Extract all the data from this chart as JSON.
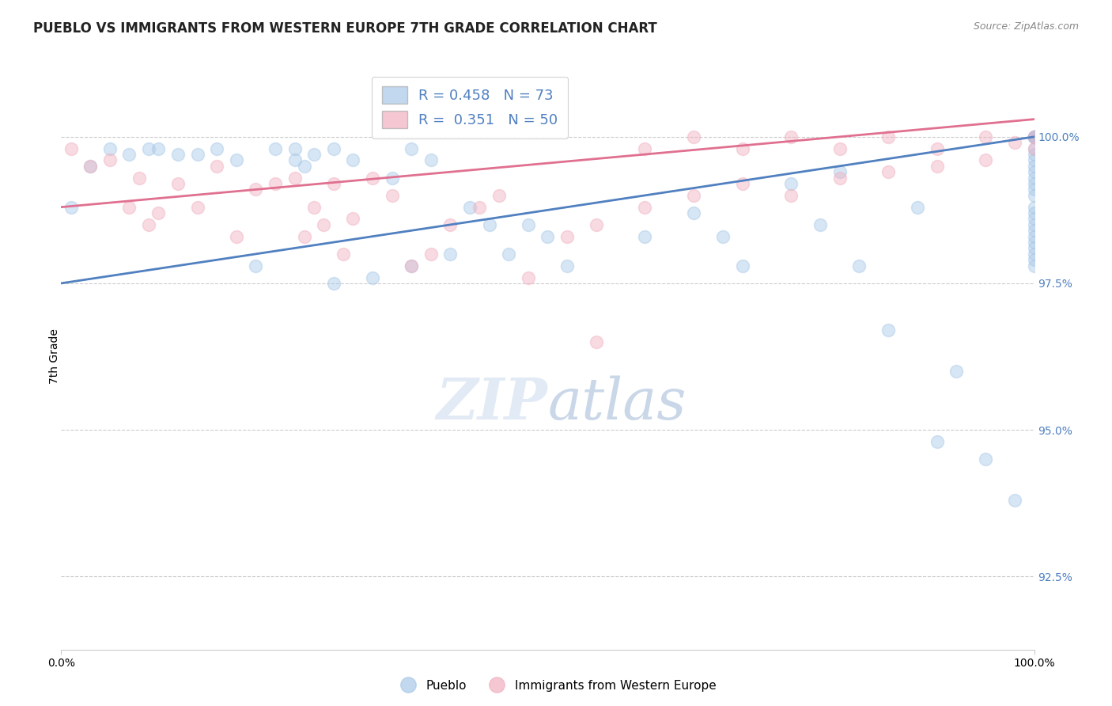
{
  "title": "PUEBLO VS IMMIGRANTS FROM WESTERN EUROPE 7TH GRADE CORRELATION CHART",
  "source": "Source: ZipAtlas.com",
  "ylabel": "7th Grade",
  "y_tick_labels": [
    "92.5%",
    "95.0%",
    "97.5%",
    "100.0%"
  ],
  "y_tick_values": [
    92.5,
    95.0,
    97.5,
    100.0
  ],
  "xlim": [
    0.0,
    100.0
  ],
  "ylim": [
    91.25,
    101.25
  ],
  "legend_blue_label": "R = 0.458   N = 73",
  "legend_pink_label": "R =  0.351   N = 50",
  "pueblo_legend": "Pueblo",
  "western_europe_legend": "Immigrants from Western Europe",
  "blue_color": "#a8c8e8",
  "pink_color": "#f0b0c0",
  "blue_line_color": "#5080c0",
  "pink_line_color": "#e07090",
  "blue_scatter_x": [
    1,
    3,
    5,
    7,
    9,
    10,
    12,
    14,
    16,
    18,
    20,
    22,
    24,
    24,
    25,
    26,
    28,
    28,
    30,
    32,
    34,
    36,
    36,
    38,
    40,
    42,
    44,
    46,
    48,
    50,
    52,
    60,
    65,
    68,
    70,
    75,
    78,
    80,
    82,
    85,
    88,
    90,
    92,
    95,
    98,
    100,
    100,
    100,
    100,
    100,
    100,
    100,
    100,
    100,
    100,
    100,
    100,
    100,
    100,
    100,
    100,
    100,
    100,
    100,
    100,
    100,
    100,
    100,
    100,
    100,
    100,
    100,
    100
  ],
  "blue_scatter_y": [
    98.8,
    99.5,
    99.8,
    99.7,
    99.8,
    99.8,
    99.7,
    99.7,
    99.8,
    99.6,
    97.8,
    99.8,
    99.8,
    99.6,
    99.5,
    99.7,
    99.8,
    97.5,
    99.6,
    97.6,
    99.3,
    97.8,
    99.8,
    99.6,
    98.0,
    98.8,
    98.5,
    98.0,
    98.5,
    98.3,
    97.8,
    98.3,
    98.7,
    98.3,
    97.8,
    99.2,
    98.5,
    99.4,
    97.8,
    96.7,
    98.8,
    94.8,
    96.0,
    94.5,
    93.8,
    100.0,
    100.0,
    100.0,
    100.0,
    100.0,
    100.0,
    100.0,
    100.0,
    99.8,
    99.7,
    99.6,
    99.5,
    99.4,
    99.3,
    99.2,
    99.1,
    99.0,
    98.8,
    98.7,
    98.6,
    98.5,
    98.4,
    98.3,
    98.2,
    98.1,
    98.0,
    97.9,
    97.8
  ],
  "pink_scatter_x": [
    1,
    3,
    5,
    7,
    8,
    9,
    10,
    12,
    14,
    16,
    18,
    20,
    22,
    24,
    25,
    26,
    27,
    28,
    29,
    30,
    32,
    34,
    36,
    38,
    40,
    43,
    45,
    48,
    52,
    55,
    60,
    65,
    70,
    75,
    80,
    85,
    90,
    95,
    100,
    55,
    60,
    65,
    70,
    75,
    80,
    85,
    90,
    95,
    98,
    100
  ],
  "pink_scatter_y": [
    99.8,
    99.5,
    99.6,
    98.8,
    99.3,
    98.5,
    98.7,
    99.2,
    98.8,
    99.5,
    98.3,
    99.1,
    99.2,
    99.3,
    98.3,
    98.8,
    98.5,
    99.2,
    98.0,
    98.6,
    99.3,
    99.0,
    97.8,
    98.0,
    98.5,
    98.8,
    99.0,
    97.6,
    98.3,
    98.5,
    98.8,
    99.0,
    99.2,
    99.0,
    99.3,
    99.4,
    99.5,
    99.6,
    99.8,
    96.5,
    99.8,
    100.0,
    99.8,
    100.0,
    99.8,
    100.0,
    99.8,
    100.0,
    99.9,
    100.0
  ],
  "blue_trendline_x": [
    0,
    100
  ],
  "blue_trendline_y": [
    97.5,
    100.0
  ],
  "pink_trendline_x": [
    0,
    100
  ],
  "pink_trendline_y": [
    98.8,
    100.3
  ],
  "background_color": "#ffffff",
  "grid_color": "#cccccc",
  "title_fontsize": 12,
  "axis_label_fontsize": 10,
  "tick_fontsize": 10,
  "marker_size": 130,
  "marker_alpha": 0.45,
  "dpi": 100
}
